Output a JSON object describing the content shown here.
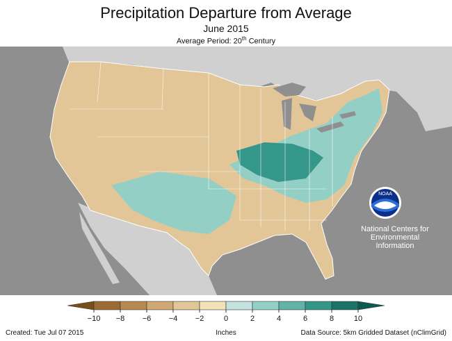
{
  "title": "Precipitation Departure from Average",
  "subtitle": "June 2015",
  "period_prefix": "Average Period: 20",
  "period_sup": "th",
  "period_suffix": " Century",
  "organization": [
    "National Centers for",
    "Environmental",
    "Information"
  ],
  "logo_text": "NOAA",
  "legend": {
    "unit": "Inches",
    "ticks": [
      "−10",
      "−8",
      "−6",
      "−4",
      "−2",
      "0",
      "2",
      "4",
      "6",
      "8",
      "10"
    ],
    "colors": [
      "#7a4e1b",
      "#9c6b33",
      "#b88a52",
      "#cfa874",
      "#e2c697",
      "#f2e2b8",
      "#c4e3de",
      "#94cfc6",
      "#62b3a7",
      "#35968a",
      "#1a7369",
      "#0d5a52"
    ]
  },
  "footer": {
    "created": "Created: Tue Jul 07 2015",
    "source": "Data Source: 5km Gridded Dataset (nClimGrid)"
  },
  "colors": {
    "ocean": "#8f8f8f",
    "foreign_land": "#d0d0d0",
    "great_lakes": "#8f8f8f",
    "dry": "#e2c697",
    "wet": "#94cfc6",
    "very_wet": "#35968a"
  }
}
